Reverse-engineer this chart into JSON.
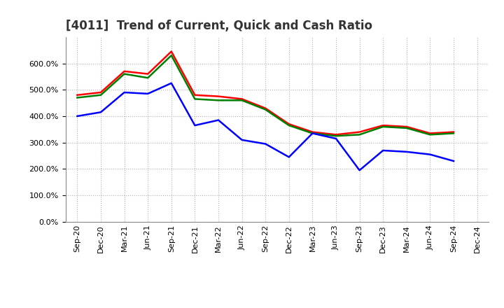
{
  "title": "[4011]  Trend of Current, Quick and Cash Ratio",
  "x_labels": [
    "Sep-20",
    "Dec-20",
    "Mar-21",
    "Jun-21",
    "Sep-21",
    "Dec-21",
    "Mar-22",
    "Jun-22",
    "Sep-22",
    "Dec-22",
    "Mar-23",
    "Jun-23",
    "Sep-23",
    "Dec-23",
    "Mar-24",
    "Jun-24",
    "Sep-24",
    "Dec-24"
  ],
  "current_ratio": [
    480,
    490,
    570,
    560,
    645,
    480,
    475,
    465,
    430,
    370,
    340,
    330,
    340,
    365,
    360,
    335,
    340,
    null
  ],
  "quick_ratio": [
    470,
    480,
    560,
    545,
    630,
    465,
    460,
    460,
    425,
    365,
    335,
    325,
    330,
    360,
    355,
    330,
    335,
    null
  ],
  "cash_ratio": [
    400,
    415,
    490,
    485,
    525,
    365,
    385,
    310,
    295,
    245,
    335,
    315,
    195,
    270,
    265,
    255,
    230,
    null
  ],
  "current_color": "#ff0000",
  "quick_color": "#008000",
  "cash_color": "#0000ff",
  "ylim": [
    0,
    700
  ],
  "yticks": [
    0,
    100,
    200,
    300,
    400,
    500,
    600
  ],
  "background_color": "#ffffff",
  "grid_color": "#b0b0b0",
  "line_width": 1.8,
  "title_fontsize": 12,
  "tick_fontsize": 8,
  "legend_fontsize": 9
}
